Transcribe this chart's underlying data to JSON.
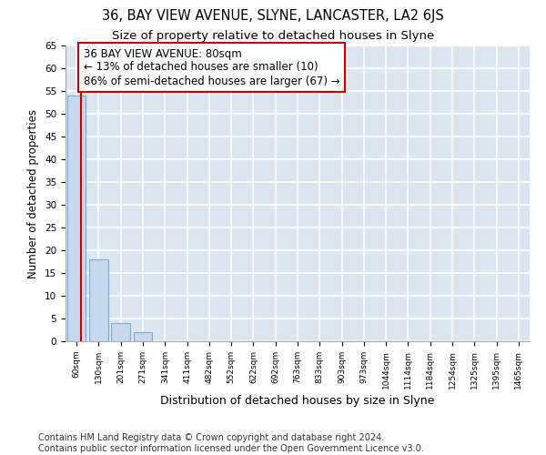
{
  "title": "36, BAY VIEW AVENUE, SLYNE, LANCASTER, LA2 6JS",
  "subtitle": "Size of property relative to detached houses in Slyne",
  "xlabel": "Distribution of detached houses by size in Slyne",
  "ylabel": "Number of detached properties",
  "bins": [
    "60sqm",
    "130sqm",
    "201sqm",
    "271sqm",
    "341sqm",
    "411sqm",
    "482sqm",
    "552sqm",
    "622sqm",
    "692sqm",
    "763sqm",
    "833sqm",
    "903sqm",
    "973sqm",
    "1044sqm",
    "1114sqm",
    "1184sqm",
    "1254sqm",
    "1325sqm",
    "1395sqm",
    "1465sqm"
  ],
  "values": [
    54,
    18,
    4,
    2,
    0,
    0,
    0,
    0,
    0,
    0,
    0,
    0,
    0,
    0,
    0,
    0,
    0,
    0,
    0,
    0,
    0
  ],
  "bar_color": "#c5d8ee",
  "bar_edge_color": "#7aadd4",
  "background_color": "#dce6f0",
  "grid_color": "#ffffff",
  "property_line_color": "#cc0000",
  "property_line_x": 0.22,
  "annotation_text": "36 BAY VIEW AVENUE: 80sqm\n← 13% of detached houses are smaller (10)\n86% of semi-detached houses are larger (67) →",
  "annotation_box_color": "#ffffff",
  "annotation_box_edge": "#cc0000",
  "ylim": [
    0,
    65
  ],
  "yticks": [
    0,
    5,
    10,
    15,
    20,
    25,
    30,
    35,
    40,
    45,
    50,
    55,
    60,
    65
  ],
  "footer": "Contains HM Land Registry data © Crown copyright and database right 2024.\nContains public sector information licensed under the Open Government Licence v3.0.",
  "title_fontsize": 10.5,
  "subtitle_fontsize": 9.5,
  "xlabel_fontsize": 9,
  "ylabel_fontsize": 8.5,
  "annotation_fontsize": 8.5,
  "footer_fontsize": 7
}
